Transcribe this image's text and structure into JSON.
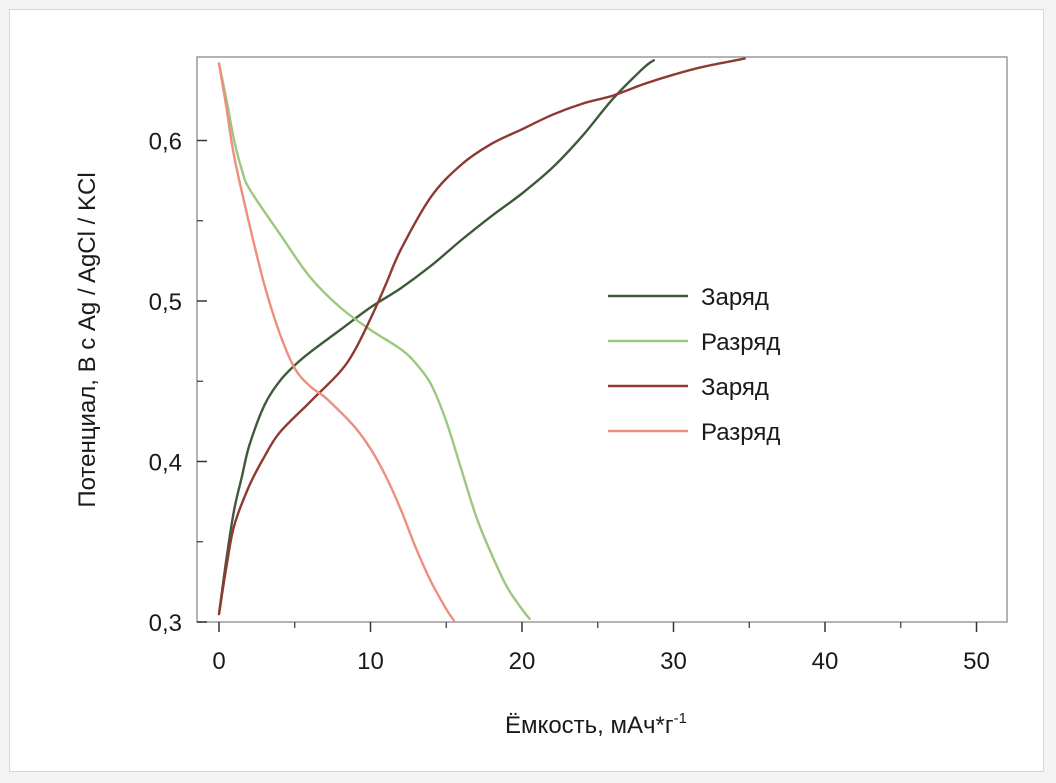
{
  "chart_data": {
    "type": "line",
    "title": "",
    "xlabel": "Ёмкость, мАч*г",
    "xlabel_superscript": "-1",
    "ylabel": "Потенциал, В с Ag / AgCl / KCl",
    "xlim": [
      0,
      51
    ],
    "ylim": [
      0.3,
      0.65
    ],
    "x_ticks": [
      0,
      10,
      20,
      30,
      40,
      50
    ],
    "x_tick_labels": [
      "0",
      "10",
      "20",
      "30",
      "40",
      "50"
    ],
    "y_ticks": [
      0.3,
      0.4,
      0.5,
      0.6
    ],
    "y_tick_labels": [
      "0,3",
      "0,4",
      "0,5",
      "0,6"
    ],
    "grid": false,
    "legend_position": "center-right",
    "series": [
      {
        "name": "Заряд",
        "color": "#3e5a3b",
        "points": [
          [
            0,
            0.305
          ],
          [
            0.5,
            0.34
          ],
          [
            1,
            0.37
          ],
          [
            1.5,
            0.39
          ],
          [
            2,
            0.41
          ],
          [
            3,
            0.435
          ],
          [
            4,
            0.45
          ],
          [
            5,
            0.46
          ],
          [
            6,
            0.468
          ],
          [
            8,
            0.482
          ],
          [
            10,
            0.496
          ],
          [
            12,
            0.508
          ],
          [
            14,
            0.522
          ],
          [
            16,
            0.538
          ],
          [
            18,
            0.553
          ],
          [
            20,
            0.567
          ],
          [
            22,
            0.583
          ],
          [
            24,
            0.603
          ],
          [
            26,
            0.626
          ],
          [
            28,
            0.645
          ],
          [
            28.7,
            0.65
          ]
        ]
      },
      {
        "name": "Разряд",
        "color": "#9cc77e",
        "points": [
          [
            0,
            0.648
          ],
          [
            0.5,
            0.625
          ],
          [
            1,
            0.6
          ],
          [
            1.5,
            0.582
          ],
          [
            2,
            0.57
          ],
          [
            4,
            0.542
          ],
          [
            6,
            0.515
          ],
          [
            8,
            0.496
          ],
          [
            10,
            0.482
          ],
          [
            12,
            0.47
          ],
          [
            13,
            0.461
          ],
          [
            14,
            0.448
          ],
          [
            15,
            0.425
          ],
          [
            16,
            0.395
          ],
          [
            17,
            0.365
          ],
          [
            18,
            0.342
          ],
          [
            19,
            0.322
          ],
          [
            20,
            0.308
          ],
          [
            20.5,
            0.302
          ]
        ]
      },
      {
        "name": "Заряд",
        "color": "#8e3a32",
        "points": [
          [
            0,
            0.305
          ],
          [
            0.5,
            0.335
          ],
          [
            1,
            0.36
          ],
          [
            2,
            0.385
          ],
          [
            3,
            0.403
          ],
          [
            4,
            0.418
          ],
          [
            6,
            0.437
          ],
          [
            8,
            0.456
          ],
          [
            9,
            0.47
          ],
          [
            10,
            0.489
          ],
          [
            11,
            0.51
          ],
          [
            12,
            0.532
          ],
          [
            14,
            0.565
          ],
          [
            16,
            0.585
          ],
          [
            18,
            0.598
          ],
          [
            20,
            0.607
          ],
          [
            22,
            0.616
          ],
          [
            24,
            0.623
          ],
          [
            26,
            0.628
          ],
          [
            28,
            0.635
          ],
          [
            30,
            0.641
          ],
          [
            32,
            0.646
          ],
          [
            34.7,
            0.651
          ]
        ]
      },
      {
        "name": "Разряд",
        "color": "#f08d7e",
        "points": [
          [
            0,
            0.648
          ],
          [
            0.5,
            0.62
          ],
          [
            1,
            0.59
          ],
          [
            2,
            0.548
          ],
          [
            3,
            0.51
          ],
          [
            4,
            0.48
          ],
          [
            5,
            0.458
          ],
          [
            6,
            0.447
          ],
          [
            7,
            0.44
          ],
          [
            8,
            0.431
          ],
          [
            9,
            0.421
          ],
          [
            10,
            0.408
          ],
          [
            11,
            0.391
          ],
          [
            12,
            0.37
          ],
          [
            13,
            0.346
          ],
          [
            14,
            0.325
          ],
          [
            15,
            0.308
          ],
          [
            15.5,
            0.301
          ]
        ]
      }
    ]
  }
}
